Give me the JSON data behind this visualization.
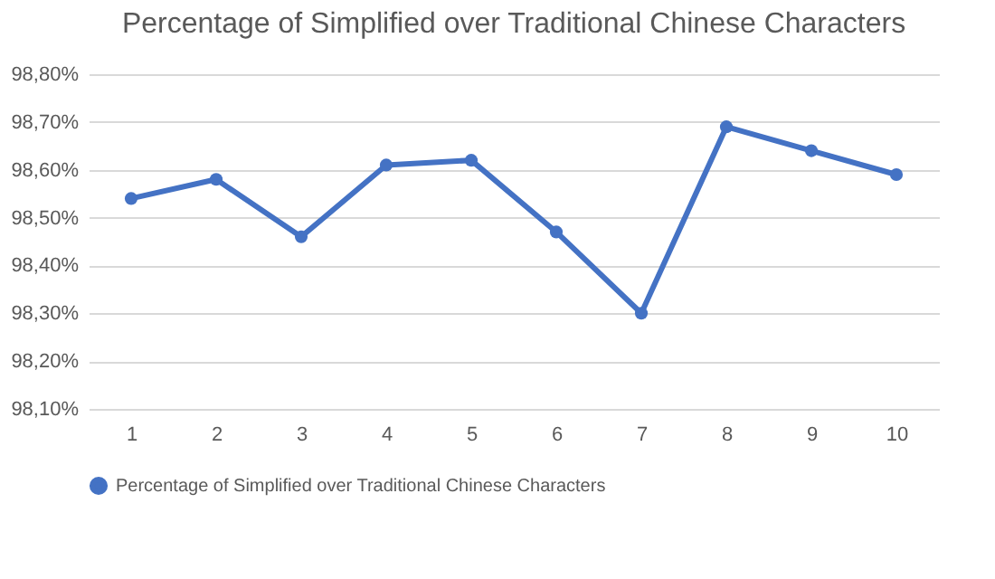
{
  "chart_data": {
    "type": "line",
    "title": "Percentage of Simplified over Traditional Chinese Characters",
    "categories": [
      "1",
      "2",
      "3",
      "4",
      "5",
      "6",
      "7",
      "8",
      "9",
      "10"
    ],
    "series": [
      {
        "name": "Percentage of Simplified over Traditional Chinese Characters",
        "color": "#4472c4",
        "values": [
          98.54,
          98.58,
          98.46,
          98.61,
          98.62,
          98.47,
          98.3,
          98.69,
          98.64,
          98.59
        ]
      }
    ],
    "ylim": [
      98.1,
      98.8
    ],
    "yticks": [
      {
        "value": 98.1,
        "label": "98,10%"
      },
      {
        "value": 98.2,
        "label": "98,20%"
      },
      {
        "value": 98.3,
        "label": "98,30%"
      },
      {
        "value": 98.4,
        "label": "98,40%"
      },
      {
        "value": 98.5,
        "label": "98,50%"
      },
      {
        "value": 98.6,
        "label": "98,60%"
      },
      {
        "value": 98.7,
        "label": "98,70%"
      },
      {
        "value": 98.8,
        "label": "98,80%"
      }
    ],
    "grid": "y",
    "legend": "bottom",
    "marker": "circle",
    "line_style": "solid"
  }
}
